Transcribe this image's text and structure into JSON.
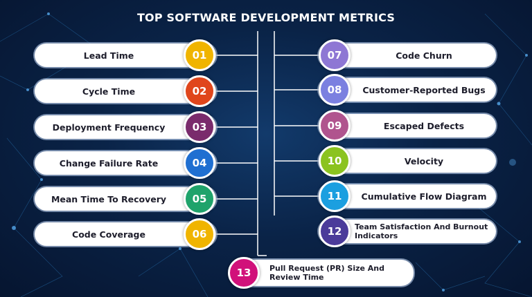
{
  "header": {
    "title": "TOP SOFTWARE DEVELOPMENT METRICS"
  },
  "items": [
    {
      "number": "01",
      "label": "Lead Time"
    },
    {
      "number": "02",
      "label": "Cycle Time"
    },
    {
      "number": "03",
      "label": "Deployment Frequency"
    },
    {
      "number": "04",
      "label": "Change Failure Rate"
    },
    {
      "number": "05",
      "label": "Mean Time To Recovery"
    },
    {
      "number": "06",
      "label": "Code Coverage"
    },
    {
      "number": "07",
      "label": "Code Churn"
    },
    {
      "number": "08",
      "label": "Customer-Reported Bugs"
    },
    {
      "number": "09",
      "label": "Escaped Defects"
    },
    {
      "number": "10",
      "label": "Velocity"
    },
    {
      "number": "11",
      "label": "Cumulative Flow Diagram"
    },
    {
      "number": "12",
      "label": "Team Satisfaction And Burnout Indicators"
    },
    {
      "number": "13",
      "label": "Pull Request (PR) Size And Review Time"
    }
  ]
}
